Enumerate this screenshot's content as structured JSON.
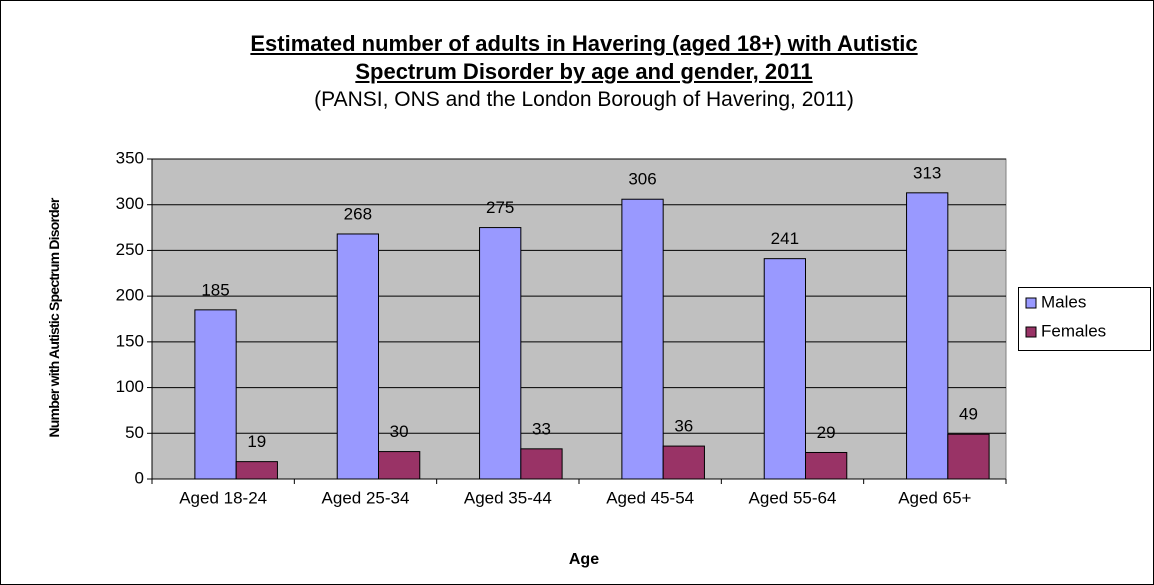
{
  "chart_data": {
    "type": "bar",
    "title": "Estimated number of adults in Havering (aged 18+) with Autistic Spectrum Disorder by age and gender, 2011",
    "subtitle": "(PANSI, ONS and the London Borough of Havering, 2011)",
    "x_label": "Age",
    "y_label": "Number with Autistic Spectrum Disorder",
    "categories": [
      "Aged 18-24",
      "Aged 25-34",
      "Aged 35-44",
      "Aged 45-54",
      "Aged 55-64",
      "Aged 65+"
    ],
    "series": [
      {
        "name": "Males",
        "color": "#9999ff",
        "values": [
          185,
          268,
          275,
          306,
          241,
          313
        ]
      },
      {
        "name": "Females",
        "color": "#993366",
        "values": [
          19,
          30,
          33,
          36,
          29,
          49
        ]
      }
    ],
    "ylim": [
      0,
      350
    ],
    "yticks": [
      0,
      50,
      100,
      150,
      200,
      250,
      300,
      350
    ],
    "grid": true,
    "legend": "right",
    "plot_background": "#c0c0c0"
  }
}
